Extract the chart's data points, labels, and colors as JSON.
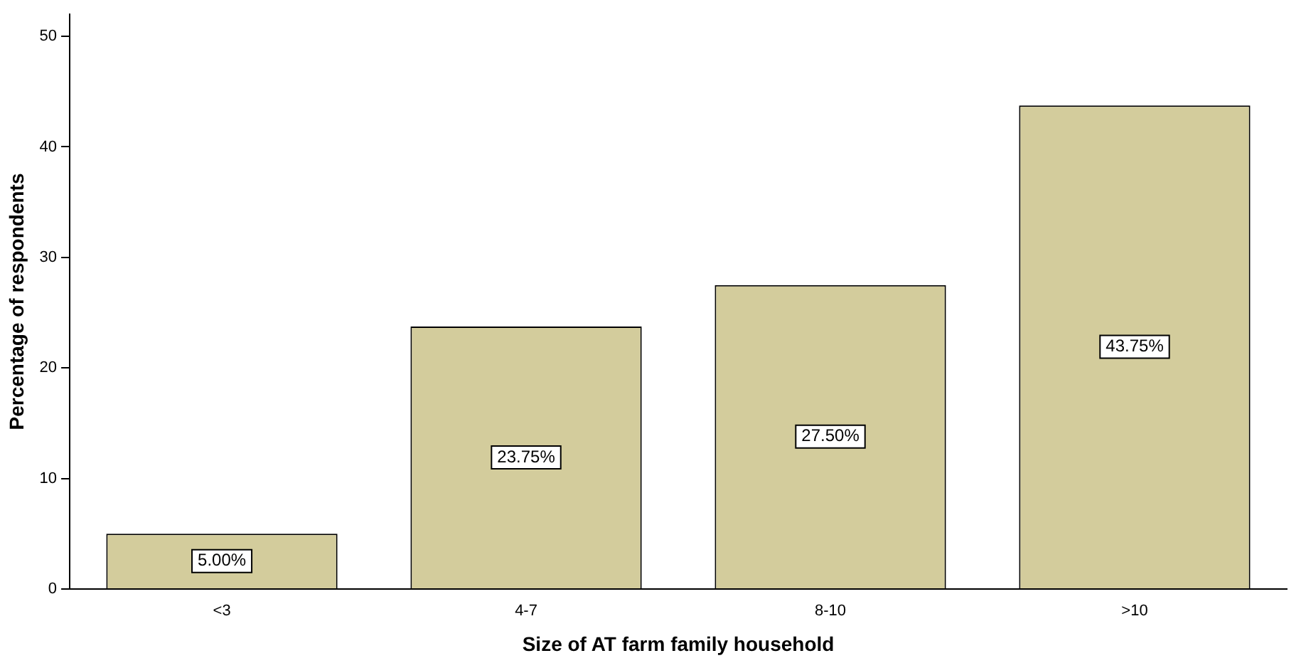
{
  "chart_data": {
    "type": "bar",
    "xlabel": "Size of AT farm family household",
    "ylabel": "Percentage of respondents",
    "categories": [
      "<3",
      "4-7",
      "8-10",
      ">10"
    ],
    "values": [
      5.0,
      23.75,
      27.5,
      43.75
    ],
    "value_labels": [
      "5.00%",
      "23.75%",
      "27.50%",
      "43.75%"
    ],
    "color": "#d3cc9c",
    "ylim": [
      0,
      52
    ],
    "yticks": [
      0,
      10,
      20,
      30,
      40,
      50
    ],
    "grid": false,
    "legend": false
  }
}
